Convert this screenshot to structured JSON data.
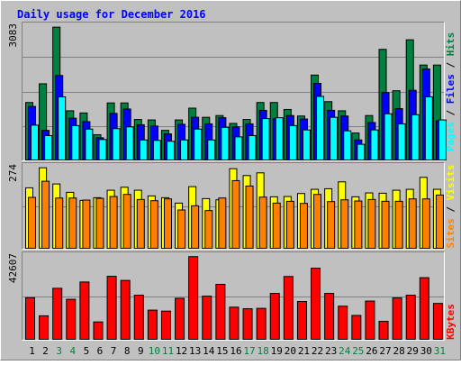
{
  "chart_data": [
    {
      "type": "bar",
      "title": "Daily usage for December 2016",
      "ylabel": "Pages / Files / Hits",
      "ylim": [
        0,
        3083
      ],
      "ytick_label": "3083",
      "categories": [
        "1",
        "2",
        "3",
        "4",
        "5",
        "6",
        "7",
        "8",
        "9",
        "10",
        "11",
        "12",
        "13",
        "14",
        "15",
        "16",
        "17",
        "18",
        "19",
        "20",
        "21",
        "22",
        "23",
        "24",
        "25",
        "26",
        "27",
        "28",
        "29",
        "30",
        "31"
      ],
      "weekend_days": [
        "3",
        "4",
        "10",
        "11",
        "17",
        "18",
        "24",
        "25",
        "31"
      ],
      "series": [
        {
          "name": "Hits",
          "color": "#008040",
          "values": [
            1340,
            1770,
            3070,
            1150,
            1100,
            600,
            1330,
            1330,
            950,
            940,
            700,
            940,
            1210,
            1000,
            1040,
            860,
            950,
            1340,
            1340,
            1180,
            1030,
            1970,
            1360,
            1150,
            640,
            1040,
            2560,
            1610,
            2780,
            2200,
            2200
          ]
        },
        {
          "name": "Files",
          "color": "#0000FF",
          "values": [
            1250,
            700,
            1960,
            980,
            900,
            530,
            1090,
            1190,
            830,
            800,
            620,
            840,
            1000,
            850,
            990,
            780,
            850,
            1160,
            970,
            1040,
            960,
            1780,
            1160,
            1030,
            480,
            880,
            1570,
            1200,
            1620,
            2110,
            920
          ]
        },
        {
          "name": "Pages",
          "color": "#00FFFF",
          "values": [
            820,
            580,
            1470,
            810,
            730,
            490,
            740,
            780,
            480,
            470,
            450,
            480,
            730,
            480,
            770,
            550,
            580,
            970,
            990,
            810,
            710,
            1480,
            1000,
            690,
            380,
            710,
            1080,
            850,
            1060,
            1470,
            940
          ]
        }
      ]
    },
    {
      "type": "bar",
      "ylabel": "Sites / Visits",
      "ylim": [
        0,
        274
      ],
      "ytick_label": "274",
      "series": [
        {
          "name": "Visits",
          "color": "#FFFF00",
          "values": [
            205,
            272,
            218,
            190,
            163,
            172,
            197,
            207,
            197,
            178,
            172,
            154,
            209,
            169,
            165,
            269,
            246,
            255,
            175,
            176,
            186,
            200,
            202,
            225,
            175,
            188,
            187,
            197,
            200,
            240,
            200
          ]
        },
        {
          "name": "Sites",
          "color": "#FF8000",
          "values": [
            173,
            227,
            171,
            171,
            164,
            170,
            176,
            183,
            166,
            162,
            168,
            131,
            145,
            129,
            171,
            229,
            211,
            174,
            154,
            160,
            153,
            183,
            159,
            165,
            161,
            166,
            160,
            160,
            168,
            168,
            181
          ]
        }
      ]
    },
    {
      "type": "bar",
      "ylabel": "KBytes",
      "ylim": [
        0,
        42607
      ],
      "ytick_label": "42607",
      "series": [
        {
          "name": "KBytes",
          "color": "#FF0000",
          "values": [
            21600,
            12400,
            26400,
            20800,
            29600,
            9300,
            32500,
            30400,
            22900,
            15300,
            14800,
            21300,
            42500,
            22400,
            28400,
            16800,
            16000,
            16200,
            23800,
            32400,
            19700,
            36600,
            23800,
            17300,
            12600,
            19900,
            9600,
            21500,
            22900,
            31800,
            18700
          ]
        }
      ]
    }
  ]
}
